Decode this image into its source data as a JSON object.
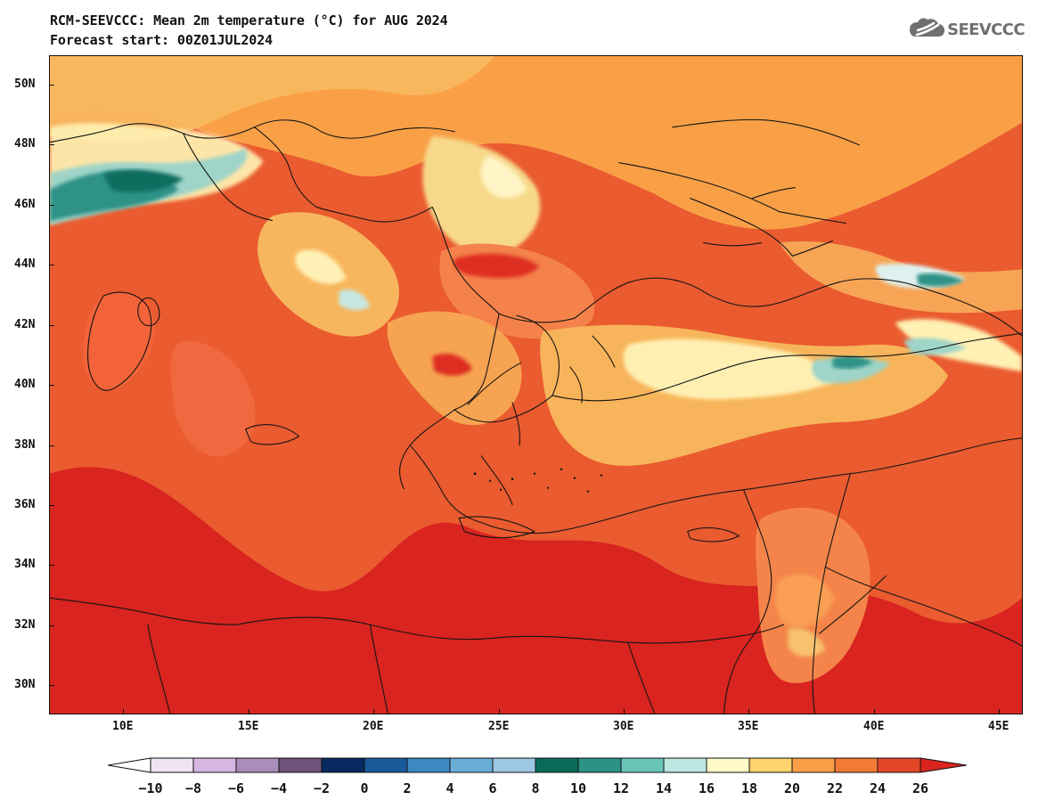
{
  "header": {
    "title": "RCM-SEEVCCC: Mean 2m temperature (°C) for AUG 2024",
    "subtitle": "Forecast start: 00Z01JUL2024",
    "logo_text": "SEEVCCC"
  },
  "map": {
    "lat_labels": [
      "50N",
      "48N",
      "46N",
      "44N",
      "42N",
      "40N",
      "38N",
      "36N",
      "34N",
      "32N",
      "30N"
    ],
    "lon_labels": [
      "10E",
      "15E",
      "20E",
      "25E",
      "30E",
      "35E",
      "40E",
      "45E"
    ],
    "icon": "cloud-logo-icon",
    "land_warm_color": "#e34b2d",
    "sea_hot_color": "#d9241f",
    "cool_alpine_color": "#43a59b"
  },
  "legend": {
    "labels": [
      "−10",
      "−8",
      "−6",
      "−4",
      "−2",
      "0",
      "2",
      "4",
      "6",
      "8",
      "10",
      "12",
      "14",
      "16",
      "18",
      "20",
      "22",
      "24",
      "26"
    ],
    "colors": [
      "#ffffff",
      "#eee3f2",
      "#d6b7e3",
      "#a98dbb",
      "#6d5279",
      "#062a61",
      "#1a5a9b",
      "#3b89c0",
      "#69aed7",
      "#9dc8e3",
      "#0a6a5a",
      "#2c9286",
      "#6ac5b8",
      "#bde8e1",
      "#fffac8",
      "#ffd36b",
      "#f9a047",
      "#f37a35",
      "#e44728",
      "#d9241f"
    ]
  }
}
